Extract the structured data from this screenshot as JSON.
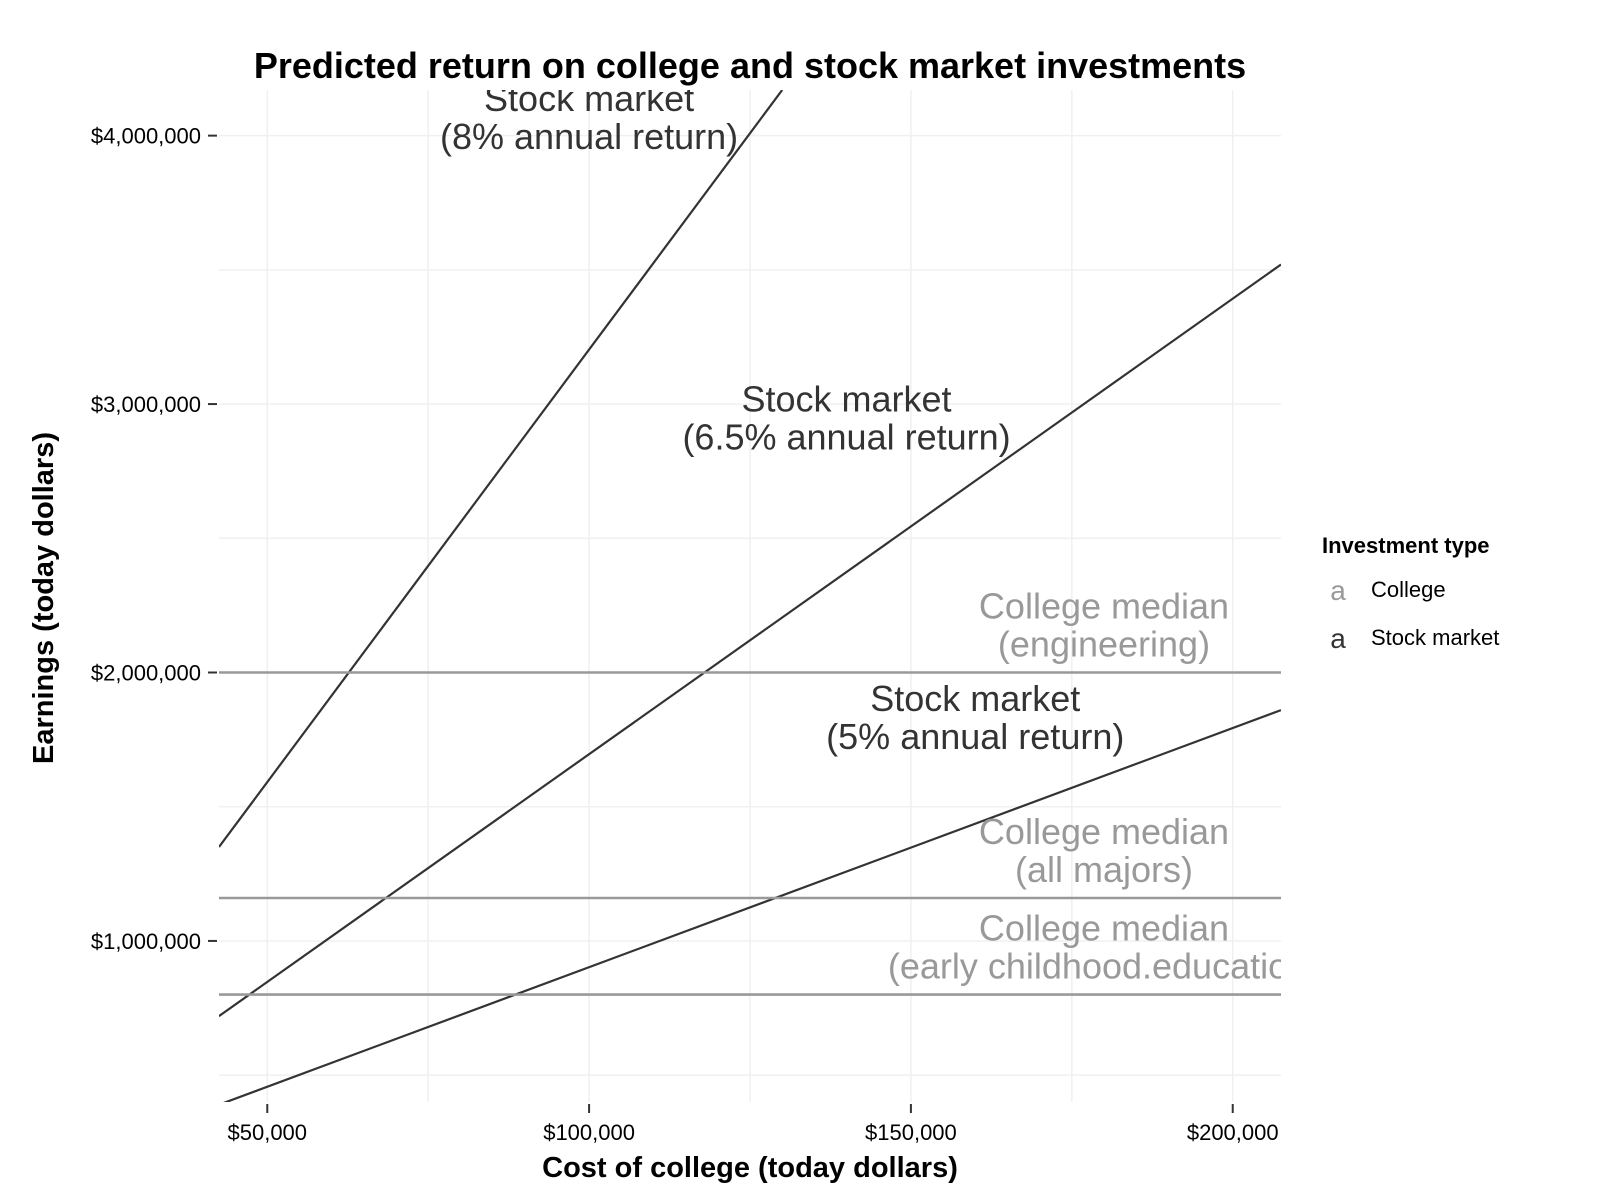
{
  "colors": {
    "college": "#999999",
    "stock": "#333333",
    "grid": "#f0f0f0",
    "axis_ticks": "#333333"
  },
  "chart_data": {
    "type": "line",
    "title": "Predicted return on college and stock market investments",
    "xlabel": "Cost of college (today dollars)",
    "ylabel": "Earnings (today dollars)",
    "xlim": [
      42500,
      207500
    ],
    "ylim": [
      400000,
      4170000
    ],
    "x_ticks": [
      {
        "value": 50000,
        "label": "$50,000"
      },
      {
        "value": 100000,
        "label": "$100,000"
      },
      {
        "value": 150000,
        "label": "$150,000"
      },
      {
        "value": 200000,
        "label": "$200,000"
      }
    ],
    "y_ticks": [
      {
        "value": 1000000,
        "label": "$1,000,000"
      },
      {
        "value": 2000000,
        "label": "$2,000,000"
      },
      {
        "value": 3000000,
        "label": "$3,000,000"
      },
      {
        "value": 4000000,
        "label": "$4,000,000"
      }
    ],
    "grid": true,
    "legend": {
      "title": "Investment type",
      "placement": "right",
      "key_glyph": "a",
      "entries": [
        {
          "label": "College",
          "group": "college"
        },
        {
          "label": "Stock market",
          "group": "stock"
        }
      ]
    },
    "series": [
      {
        "group": "stock",
        "x": [
          42500,
          130000
        ],
        "y": [
          1350000,
          4170000
        ],
        "label_lines": [
          "Stock market",
          "(8% annual return)"
        ],
        "label_x": 100000,
        "label_y": 3950000
      },
      {
        "group": "stock",
        "x": [
          42500,
          207500
        ],
        "y": [
          720000,
          3520000
        ],
        "label_lines": [
          "Stock market",
          "(6.5% annual return)"
        ],
        "label_x": 140000,
        "label_y": 2830000
      },
      {
        "group": "stock",
        "x": [
          42500,
          207500
        ],
        "y": [
          390000,
          1860000
        ],
        "label_lines": [
          "Stock market",
          "(5% annual return)"
        ],
        "label_x": 160000,
        "label_y": 1715000
      },
      {
        "group": "college",
        "x": [
          42500,
          207500
        ],
        "y": [
          2000000,
          2000000
        ],
        "label_lines": [
          "College median",
          "(engineering)"
        ],
        "label_x": 180000,
        "label_y": 2060000
      },
      {
        "group": "college",
        "x": [
          42500,
          207500
        ],
        "y": [
          1160000,
          1160000
        ],
        "label_lines": [
          "College median",
          "(all majors)"
        ],
        "label_x": 180000,
        "label_y": 1220000
      },
      {
        "group": "college",
        "x": [
          42500,
          207500
        ],
        "y": [
          800000,
          800000
        ],
        "label_lines": [
          "College median",
          "(early childhood.education)"
        ],
        "label_x": 180000,
        "label_y": 860000
      }
    ]
  }
}
